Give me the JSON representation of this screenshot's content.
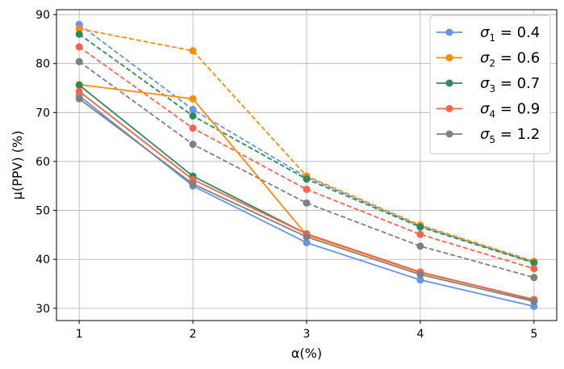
{
  "chart_data": {
    "type": "line",
    "title": "",
    "xlabel": "α(%)",
    "ylabel": "μ(PPV) (%)",
    "x": [
      1,
      2,
      3,
      4,
      5
    ],
    "xticks": [
      "1",
      "2",
      "3",
      "4",
      "5"
    ],
    "yticks": [
      "30",
      "40",
      "50",
      "60",
      "70",
      "80",
      "90"
    ],
    "xlim": [
      0.8,
      5.2
    ],
    "ylim": [
      27.5,
      91
    ],
    "grid": true,
    "legend_position": "top-right",
    "series": [
      {
        "name": "σ1 = 0.4",
        "sym": "σ",
        "sub": "1",
        "val": " = 0.4",
        "color": "#6495ED",
        "style": "solid",
        "values": [
          73.4,
          55.0,
          43.4,
          35.8,
          30.4
        ]
      },
      {
        "name": "σ2 = 0.6",
        "sym": "σ",
        "sub": "2",
        "val": " = 0.6",
        "color": "#FF8C00",
        "style": "solid",
        "values": [
          75.7,
          72.8,
          45.0,
          37.3,
          31.8
        ]
      },
      {
        "name": "σ3 = 0.7",
        "sym": "σ",
        "sub": "3",
        "val": " = 0.7",
        "color": "#2E8B57",
        "style": "solid",
        "values": [
          75.6,
          57.0,
          45.2,
          37.4,
          31.7
        ]
      },
      {
        "name": "σ4 = 0.9",
        "sym": "σ",
        "sub": "4",
        "val": " = 0.9",
        "color": "#FF6347",
        "style": "solid",
        "values": [
          74.3,
          56.3,
          45.2,
          37.4,
          31.8
        ]
      },
      {
        "name": "σ5 = 1.2",
        "sym": "σ",
        "sub": "5",
        "val": " = 1.2",
        "color": "#808080",
        "style": "solid",
        "values": [
          72.8,
          55.4,
          44.6,
          36.9,
          31.4
        ]
      },
      {
        "name": "σ1 = 0.4 (dashed)",
        "color": "#6495ED",
        "style": "dashed",
        "legend": false,
        "values": [
          88.0,
          70.6,
          56.8,
          46.8,
          39.4
        ]
      },
      {
        "name": "σ2 = 0.6 (dashed)",
        "color": "#FF8C00",
        "style": "dashed",
        "legend": false,
        "values": [
          87.1,
          82.6,
          57.0,
          47.0,
          39.6
        ]
      },
      {
        "name": "σ3 = 0.7 (dashed)",
        "color": "#2E8B57",
        "style": "dashed",
        "legend": false,
        "values": [
          86.0,
          69.3,
          56.4,
          46.6,
          39.3
        ]
      },
      {
        "name": "σ4 = 0.9 (dashed)",
        "color": "#FF6347",
        "style": "dashed",
        "legend": false,
        "values": [
          83.4,
          66.8,
          54.3,
          45.1,
          38.1
        ]
      },
      {
        "name": "σ5 = 1.2 (dashed)",
        "color": "#808080",
        "style": "dashed",
        "legend": false,
        "values": [
          80.4,
          63.5,
          51.5,
          42.7,
          36.3
        ]
      }
    ]
  }
}
